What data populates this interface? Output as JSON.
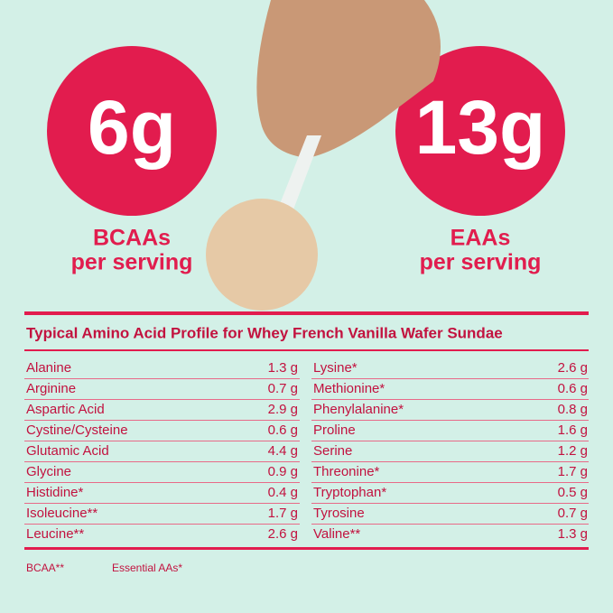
{
  "badges": [
    {
      "value": "6g",
      "label_line1": "BCAAs",
      "label_line2": "per serving"
    },
    {
      "value": "13g",
      "label_line1": "EAAs",
      "label_line2": "per serving"
    }
  ],
  "table": {
    "title": "Typical Amino Acid Profile for Whey French Vanilla Wafer Sundae",
    "left": [
      [
        "Alanine",
        "1.3 g"
      ],
      [
        "Arginine",
        "0.7 g"
      ],
      [
        "Aspartic Acid",
        "2.9 g"
      ],
      [
        "Cystine/Cysteine",
        "0.6 g"
      ],
      [
        "Glutamic Acid",
        "4.4 g"
      ],
      [
        "Glycine",
        "0.9 g"
      ],
      [
        "Histidine*",
        "0.4 g"
      ],
      [
        "Isoleucine**",
        "1.7 g"
      ],
      [
        "Leucine**",
        "2.6 g"
      ]
    ],
    "right": [
      [
        "Lysine*",
        "2.6 g"
      ],
      [
        "Methionine*",
        "0.6 g"
      ],
      [
        "Phenylalanine*",
        "0.8 g"
      ],
      [
        "Proline",
        "1.6 g"
      ],
      [
        "Serine",
        "1.2 g"
      ],
      [
        "Threonine*",
        "1.7 g"
      ],
      [
        "Tryptophan*",
        "0.5 g"
      ],
      [
        "Tyrosine",
        "0.7 g"
      ],
      [
        "Valine**",
        "1.3 g"
      ]
    ]
  },
  "footnotes": [
    "BCAA**",
    "Essential AAs*"
  ]
}
